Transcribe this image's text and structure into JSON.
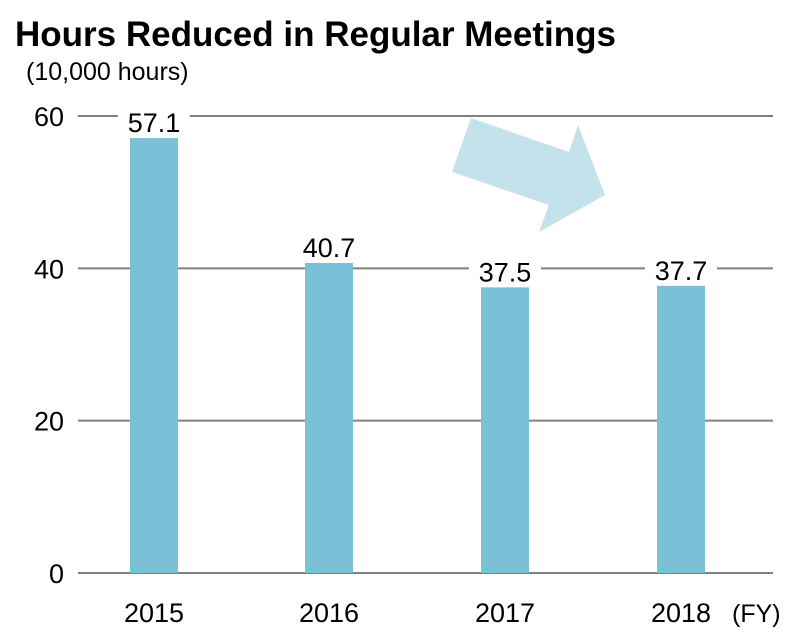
{
  "chart_data": {
    "type": "bar",
    "title": "Hours Reduced in Regular Meetings",
    "ylabel": "(10,000 hours)",
    "xlabel": "(FY)",
    "categories": [
      "2015",
      "2016",
      "2017",
      "2018"
    ],
    "values": [
      57.1,
      40.7,
      37.5,
      37.7
    ],
    "data_labels": [
      "57.1",
      "40.7",
      "37.5",
      "37.7"
    ],
    "ylim": [
      0,
      60
    ],
    "yticks": [
      0,
      20,
      40,
      60
    ],
    "grid": true,
    "legend": "none",
    "annotation": "downward-trend-arrow",
    "colors": {
      "bar": "#7bc0d6",
      "arrow": "#c4e2ec",
      "grid": "#808080"
    }
  }
}
